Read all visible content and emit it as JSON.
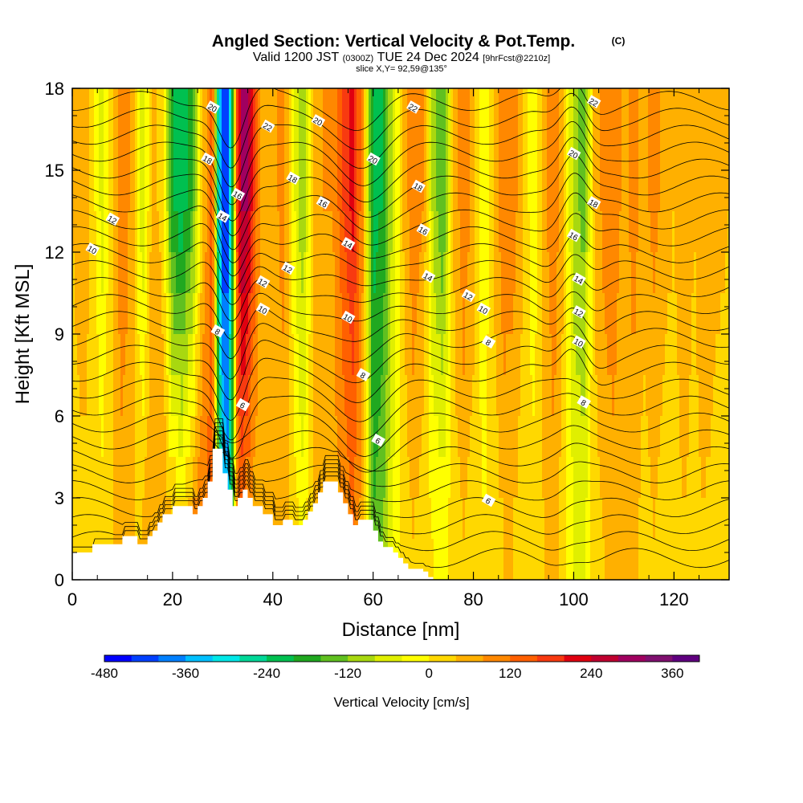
{
  "chart_data": {
    "type": "heatmap",
    "title": {
      "main": "Angled Section: Vertical Velocity & Pot.Temp.",
      "main_suffix": "(C)",
      "valid_prefix": "Valid 1200 JST",
      "valid_utc": "(0300Z)",
      "valid_date": "TUE 24 Dec 2024",
      "forecast": "[9hrFcst@2210z]",
      "slice": "slice X,Y= 92,59@135°"
    },
    "xlabel": "Distance [nm]",
    "ylabel": "Height [Kft MSL]",
    "xlim": [
      0,
      131
    ],
    "ylim": [
      0,
      18
    ],
    "x_ticks": [
      0,
      20,
      40,
      60,
      80,
      100,
      120
    ],
    "y_ticks": [
      0,
      3,
      6,
      9,
      12,
      15,
      18
    ],
    "colorbar": {
      "label": "Vertical Velocity [cm/s]",
      "min": -480,
      "max": 400,
      "step": 40,
      "tick_labels": [
        "-480",
        "-360",
        "-240",
        "-120",
        "0",
        "120",
        "240",
        "360"
      ],
      "colors": [
        "#0000ff",
        "#0040ff",
        "#0080ff",
        "#00c0ff",
        "#00e8e8",
        "#00d898",
        "#00c050",
        "#20a820",
        "#60c020",
        "#a8d810",
        "#e0ef00",
        "#ffff00",
        "#ffd800",
        "#ffb000",
        "#ff8800",
        "#ff6000",
        "#f83a10",
        "#e00010",
        "#c00030",
        "#a00060",
        "#801070",
        "#600080"
      ]
    },
    "velocity_profile_cm_s": {
      "distance_nm": [
        0,
        2,
        4,
        6,
        8,
        10,
        12,
        14,
        16,
        18,
        20,
        22,
        24,
        26,
        28,
        29,
        30,
        31,
        32,
        33,
        34,
        35,
        36,
        38,
        40,
        42,
        44,
        46,
        48,
        50,
        52,
        54,
        56,
        58,
        60,
        62,
        64,
        66,
        68,
        70,
        72,
        74,
        76,
        78,
        80,
        82,
        84,
        86,
        88,
        90,
        92,
        94,
        96,
        98,
        100,
        102,
        104,
        106,
        108,
        110,
        112,
        114,
        116,
        118,
        120,
        122,
        124,
        126,
        128,
        131
      ],
      "upper_level": [
        40,
        80,
        20,
        -60,
        40,
        120,
        60,
        -80,
        60,
        20,
        -200,
        -240,
        -160,
        40,
        140,
        -250,
        -440,
        -420,
        -150,
        200,
        300,
        280,
        180,
        40,
        60,
        100,
        -20,
        -120,
        40,
        80,
        80,
        160,
        220,
        80,
        -220,
        -200,
        -60,
        40,
        120,
        80,
        -100,
        -160,
        40,
        120,
        60,
        -40,
        40,
        120,
        100,
        40,
        -40,
        60,
        120,
        40,
        -100,
        -140,
        40,
        100,
        120,
        60,
        100,
        60,
        100,
        60,
        40,
        80,
        40,
        80,
        60,
        40
      ],
      "lower_level": [
        20,
        20,
        40,
        20,
        40,
        60,
        40,
        40,
        80,
        80,
        40,
        20,
        80,
        120,
        140,
        -80,
        -300,
        -340,
        -160,
        120,
        120,
        80,
        60,
        40,
        40,
        60,
        20,
        -20,
        40,
        60,
        60,
        80,
        120,
        60,
        -160,
        -120,
        -40,
        20,
        40,
        20,
        0,
        -20,
        20,
        40,
        20,
        0,
        20,
        40,
        40,
        20,
        20,
        40,
        60,
        20,
        -40,
        -60,
        20,
        40,
        60,
        40,
        60,
        20,
        40,
        20,
        20,
        40,
        20,
        40,
        20,
        20
      ]
    },
    "terrain_kft": {
      "distance_nm": [
        0,
        4,
        4,
        10,
        10,
        13,
        13,
        15,
        15,
        16,
        16,
        17,
        17,
        18,
        18,
        20,
        20,
        24,
        24,
        25,
        25,
        26,
        26,
        27,
        27,
        28,
        28,
        30,
        30,
        31,
        31,
        32,
        32,
        33,
        33,
        34,
        34,
        35,
        35,
        36,
        36,
        38,
        38,
        40,
        40,
        42,
        42,
        44,
        44,
        46,
        46,
        47,
        47,
        48,
        48,
        49,
        49,
        50,
        50,
        53,
        53,
        54,
        54,
        55,
        55,
        56,
        56,
        57,
        57,
        60,
        60,
        61,
        61,
        62,
        62,
        64,
        64,
        65,
        65,
        66,
        66,
        67,
        67,
        70,
        70,
        71,
        71,
        72,
        72
      ],
      "height": [
        1.0,
        1.0,
        1.3,
        1.3,
        1.6,
        1.6,
        1.3,
        1.3,
        1.6,
        1.6,
        1.8,
        1.8,
        2.1,
        2.1,
        2.4,
        2.4,
        2.7,
        2.7,
        2.4,
        2.4,
        2.7,
        2.7,
        3.0,
        3.0,
        3.6,
        3.6,
        4.8,
        4.8,
        3.9,
        3.9,
        3.3,
        3.3,
        2.7,
        2.7,
        3.0,
        3.0,
        3.3,
        3.3,
        3.0,
        3.0,
        2.7,
        2.7,
        2.4,
        2.4,
        2.0,
        2.0,
        2.2,
        2.2,
        2.0,
        2.0,
        2.2,
        2.2,
        2.5,
        2.5,
        2.8,
        2.8,
        3.2,
        3.2,
        3.6,
        3.6,
        3.2,
        3.2,
        2.8,
        2.8,
        2.4,
        2.4,
        2.0,
        2.0,
        2.2,
        2.2,
        1.8,
        1.8,
        1.4,
        1.4,
        1.2,
        1.2,
        1.0,
        1.0,
        0.8,
        0.8,
        0.6,
        0.6,
        0.4,
        0.4,
        0.3,
        0.3,
        0.1,
        0.1,
        0.0
      ]
    },
    "isentrope_labels_c": [
      {
        "x": 4,
        "y": 12.1,
        "label": "10"
      },
      {
        "x": 8,
        "y": 13.2,
        "label": "12"
      },
      {
        "x": 28,
        "y": 17.3,
        "label": "20"
      },
      {
        "x": 27,
        "y": 15.4,
        "label": "18"
      },
      {
        "x": 33,
        "y": 14.1,
        "label": "16"
      },
      {
        "x": 30,
        "y": 13.3,
        "label": "14"
      },
      {
        "x": 38,
        "y": 10.9,
        "label": "12"
      },
      {
        "x": 38,
        "y": 9.9,
        "label": "10"
      },
      {
        "x": 29,
        "y": 9.1,
        "label": "8"
      },
      {
        "x": 34,
        "y": 6.4,
        "label": "6"
      },
      {
        "x": 39,
        "y": 16.6,
        "label": "22"
      },
      {
        "x": 49,
        "y": 16.8,
        "label": "20"
      },
      {
        "x": 44,
        "y": 14.7,
        "label": "18"
      },
      {
        "x": 50,
        "y": 13.8,
        "label": "16"
      },
      {
        "x": 55,
        "y": 12.3,
        "label": "14"
      },
      {
        "x": 43,
        "y": 11.4,
        "label": "12"
      },
      {
        "x": 55,
        "y": 9.6,
        "label": "10"
      },
      {
        "x": 58,
        "y": 7.5,
        "label": "8"
      },
      {
        "x": 61,
        "y": 5.1,
        "label": "6"
      },
      {
        "x": 68,
        "y": 17.3,
        "label": "22"
      },
      {
        "x": 60,
        "y": 15.4,
        "label": "20"
      },
      {
        "x": 69,
        "y": 14.4,
        "label": "18"
      },
      {
        "x": 70,
        "y": 12.8,
        "label": "16"
      },
      {
        "x": 71,
        "y": 11.1,
        "label": "14"
      },
      {
        "x": 79,
        "y": 10.4,
        "label": "12"
      },
      {
        "x": 82,
        "y": 9.9,
        "label": "10"
      },
      {
        "x": 83,
        "y": 8.7,
        "label": "8"
      },
      {
        "x": 83,
        "y": 2.9,
        "label": "6"
      },
      {
        "x": 104,
        "y": 17.5,
        "label": "22"
      },
      {
        "x": 100,
        "y": 15.6,
        "label": "20"
      },
      {
        "x": 104,
        "y": 13.8,
        "label": "18"
      },
      {
        "x": 100,
        "y": 12.6,
        "label": "16"
      },
      {
        "x": 101,
        "y": 11.0,
        "label": "14"
      },
      {
        "x": 101,
        "y": 9.8,
        "label": "12"
      },
      {
        "x": 101,
        "y": 8.7,
        "label": "10"
      },
      {
        "x": 102,
        "y": 6.5,
        "label": "8"
      }
    ]
  }
}
